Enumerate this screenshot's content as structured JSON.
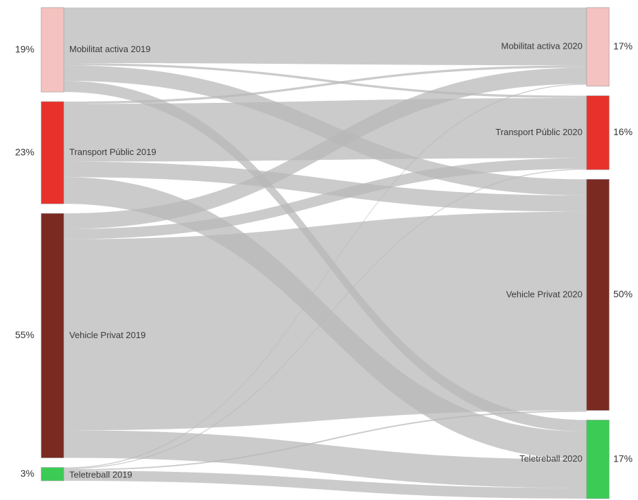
{
  "chart_data": {
    "type": "sankey",
    "link_color": "#b7b7b7",
    "source_nodes": [
      {
        "id": "ma19",
        "label": "Mobilitat activa 2019",
        "pct_label": "19%",
        "value": 19,
        "color": "#f4c2c0"
      },
      {
        "id": "tp19",
        "label": "Transport Públic 2019",
        "pct_label": "23%",
        "value": 23,
        "color": "#e8312b"
      },
      {
        "id": "vp19",
        "label": "Vehicle Privat 2019",
        "pct_label": "55%",
        "value": 55,
        "color": "#7b2a22"
      },
      {
        "id": "tt19",
        "label": "Teletreball 2019",
        "pct_label": "3%",
        "value": 3,
        "color": "#3ccc56"
      }
    ],
    "target_nodes": [
      {
        "id": "ma20",
        "label": "Mobilitat activa 2020",
        "pct_label": "17%",
        "value": 17,
        "color": "#f4c2c0"
      },
      {
        "id": "tp20",
        "label": "Transport Públic 2020",
        "pct_label": "16%",
        "value": 16,
        "color": "#e8312b"
      },
      {
        "id": "vp20",
        "label": "Vehicle Privat 2020",
        "pct_label": "50%",
        "value": 50,
        "color": "#7b2a22"
      },
      {
        "id": "tt20",
        "label": "Teletreball 2020",
        "pct_label": "17%",
        "value": 17,
        "color": "#3ccc56"
      }
    ],
    "links": [
      {
        "source": "ma19",
        "target": "ma20",
        "value": 12.5
      },
      {
        "source": "ma19",
        "target": "tp20",
        "value": 0.5
      },
      {
        "source": "ma19",
        "target": "vp20",
        "value": 3.5
      },
      {
        "source": "ma19",
        "target": "tt20",
        "value": 2.5
      },
      {
        "source": "tp19",
        "target": "ma20",
        "value": 0.5
      },
      {
        "source": "tp19",
        "target": "tp20",
        "value": 13
      },
      {
        "source": "tp19",
        "target": "vp20",
        "value": 3.5
      },
      {
        "source": "tp19",
        "target": "tt20",
        "value": 6
      },
      {
        "source": "vp19",
        "target": "ma20",
        "value": 3.5
      },
      {
        "source": "vp19",
        "target": "tp20",
        "value": 2.3
      },
      {
        "source": "vp19",
        "target": "vp20",
        "value": 43
      },
      {
        "source": "vp19",
        "target": "tt20",
        "value": 6.2
      },
      {
        "source": "tt19",
        "target": "ma20",
        "value": 0.2
      },
      {
        "source": "tt19",
        "target": "tp20",
        "value": 0.2
      },
      {
        "source": "tt19",
        "target": "vp20",
        "value": 0.3
      },
      {
        "source": "tt19",
        "target": "tt20",
        "value": 2.3
      }
    ]
  }
}
